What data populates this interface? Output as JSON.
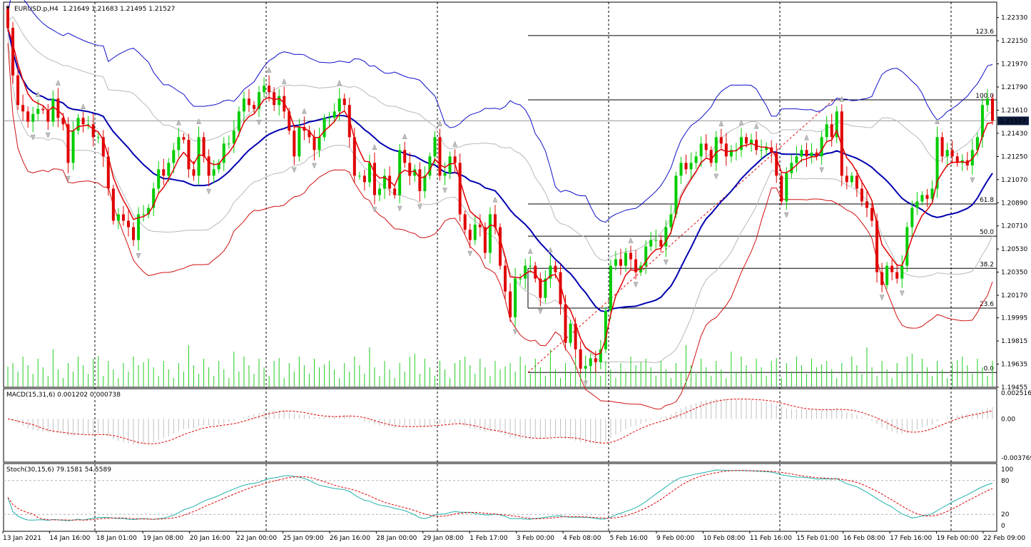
{
  "chart_data": {
    "type": "candlestick",
    "symbol_header": "EURUSD.p,H4",
    "ohlc_header": "1.21649 1.21683 1.21495 1.21527",
    "current_price_label": "1.21527",
    "current_price": 1.21527,
    "price_axis": {
      "range": [
        1.19455,
        1.2245
      ],
      "tick_labels": [
        "1.22330",
        "1.22150",
        "1.21970",
        "1.21790",
        "1.21610",
        "1.21430",
        "1.21250",
        "1.21070",
        "1.20890",
        "1.20710",
        "1.20530",
        "1.20350",
        "1.20170",
        "1.19995",
        "1.19815",
        "1.19635",
        "1.19455"
      ]
    },
    "time_axis": {
      "tick_labels": [
        "13 Jan 2021",
        "14 Jan 16:00",
        "18 Jan 01:00",
        "19 Jan 08:00",
        "20 Jan 16:00",
        "22 Jan 00:00",
        "25 Jan 09:00",
        "26 Jan 16:00",
        "28 Jan 00:00",
        "29 Jan 08:00",
        "1 Feb 17:00",
        "3 Feb 00:00",
        "4 Feb 08:00",
        "5 Feb 16:00",
        "9 Feb 00:00",
        "10 Feb 08:00",
        "11 Feb 16:00",
        "15 Feb 01:00",
        "16 Feb 08:00",
        "17 Feb 16:00",
        "19 Feb 00:00",
        "22 Feb 09:00"
      ]
    },
    "fibonacci": {
      "swing_low": 1.1957,
      "swing_high": 1.2169,
      "levels": [
        {
          "label": "123.6",
          "ratio": 1.236
        },
        {
          "label": "100.0",
          "ratio": 1.0
        },
        {
          "label": "61.8",
          "ratio": 0.618
        },
        {
          "label": "50.0",
          "ratio": 0.5
        },
        {
          "label": "38.2",
          "ratio": 0.382
        },
        {
          "label": "23.6",
          "ratio": 0.236
        },
        {
          "label": "0.0",
          "ratio": 0.0
        }
      ]
    },
    "macd": {
      "header": "MACD(15,31,6) 0.001202 0.000738",
      "tick_labels": [
        "0.002516",
        "0.00",
        "-0.003769"
      ],
      "range": [
        -0.003769,
        0.002516
      ]
    },
    "stoch": {
      "header": "Stoch(30,15,6) 79.1581 54.5589",
      "tick_labels": [
        "100",
        "80",
        "20",
        "0"
      ],
      "levels": [
        80,
        20
      ],
      "range": [
        0,
        100
      ]
    },
    "closes": [
      1.2225,
      1.2188,
      1.2165,
      1.216,
      1.2152,
      1.2158,
      1.2162,
      1.2161,
      1.2152,
      1.217,
      1.2155,
      1.215,
      1.212,
      1.2145,
      1.2155,
      1.215,
      1.215,
      1.214,
      1.214,
      1.2125,
      1.21,
      1.2075,
      1.208,
      1.2075,
      1.207,
      1.206,
      1.208,
      1.208,
      1.2085,
      1.21,
      1.2115,
      1.211,
      1.212,
      1.213,
      1.214,
      1.2138,
      1.2115,
      1.211,
      1.214,
      1.2125,
      1.211,
      1.2115,
      1.212,
      1.2135,
      1.2135,
      1.2145,
      1.216,
      1.217,
      1.2165,
      1.2162,
      1.2175,
      1.218,
      1.2175,
      1.2165,
      1.2172,
      1.216,
      1.2145,
      1.2125,
      1.2148,
      1.2145,
      1.214,
      1.213,
      1.214,
      1.2155,
      1.2155,
      1.216,
      1.217,
      1.2165,
      1.214,
      1.211,
      1.211,
      1.2105,
      1.212,
      1.2095,
      1.21,
      1.211,
      1.21,
      1.2095,
      1.213,
      1.212,
      1.211,
      1.2115,
      1.2098,
      1.211,
      1.2125,
      1.214,
      1.211,
      1.2112,
      1.2125,
      1.212,
      1.208,
      1.2068,
      1.206,
      1.2072,
      1.207,
      1.205,
      1.208,
      1.207,
      1.204,
      1.202,
      1.2,
      1.203,
      1.203,
      1.204,
      1.204,
      1.203,
      1.2015,
      1.203,
      1.204,
      1.2035,
      1.201,
      1.198,
      1.1995,
      1.1975,
      1.196,
      1.1962,
      1.1968,
      1.1965,
      1.1975,
      1.2005,
      1.204,
      1.2045,
      1.204,
      1.205,
      1.2045,
      1.2035,
      1.204,
      1.2055,
      1.206,
      1.206,
      1.2055,
      1.207,
      1.208,
      1.211,
      1.212,
      1.2115,
      1.212,
      1.2125,
      1.2135,
      1.213,
      1.212,
      1.214,
      1.2135,
      1.2125,
      1.213,
      1.213,
      1.214,
      1.2135,
      1.2138,
      1.213,
      1.213,
      1.2132,
      1.2128,
      1.211,
      1.209,
      1.2112,
      1.212,
      1.2125,
      1.213,
      1.2125,
      1.2128,
      1.2125,
      1.214,
      1.215,
      1.214,
      1.216,
      1.211,
      1.2105,
      1.211,
      1.21,
      1.209,
      1.2085,
      1.2075,
      1.2035,
      1.2025,
      1.204,
      1.2035,
      1.203,
      1.204,
      1.207,
      1.2085,
      1.209,
      1.2095,
      1.2092,
      1.21,
      1.214,
      1.2125,
      1.213,
      1.2125,
      1.212,
      1.2122,
      1.2118,
      1.213,
      1.214,
      1.2165,
      1.217,
      1.21527
    ]
  }
}
